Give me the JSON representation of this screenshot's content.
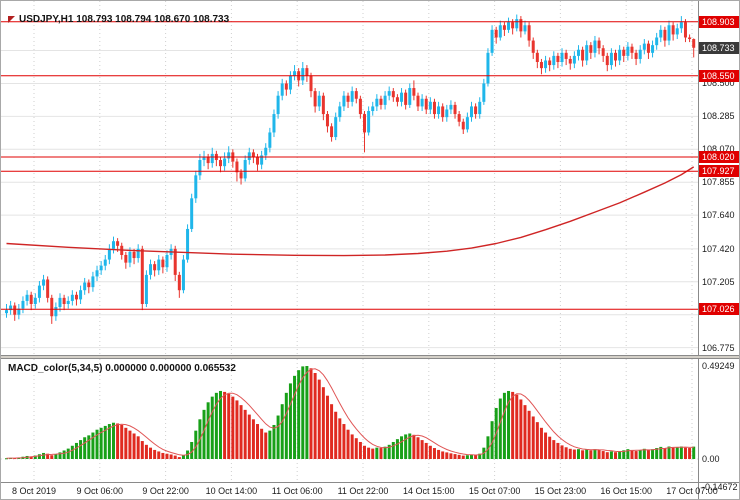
{
  "title": {
    "symbol": "USDJPY,H1",
    "quote": "108.793 108.794 108.670 108.733"
  },
  "macd_title": {
    "name": "MACD_color(5,34,5)",
    "values": "0.000000 0.000000 0.065532"
  },
  "chart_data": {
    "type": "candlestick",
    "symbol": "USDJPY",
    "timeframe": "H1",
    "quote": {
      "open": "108.793",
      "high": "108.794",
      "low": "108.670",
      "close": "108.733"
    },
    "price_axis": {
      "min": 106.74,
      "max": 108.96,
      "gridlines": [
        {
          "label": "",
          "value": 108.715
        },
        {
          "label": "108.500",
          "value": 108.5
        },
        {
          "label": "108.285",
          "value": 108.285
        },
        {
          "label": "108.070",
          "value": 108.07
        },
        {
          "label": "107.855",
          "value": 107.855
        },
        {
          "label": "107.640",
          "value": 107.64
        },
        {
          "label": "107.420",
          "value": 107.42
        },
        {
          "label": "107.205",
          "value": 107.205
        },
        {
          "label": "",
          "value": 106.99
        },
        {
          "label": "106.775",
          "value": 106.775
        }
      ]
    },
    "levels": [
      {
        "label": "108.903",
        "value": 108.903
      },
      {
        "label": "108.550",
        "value": 108.55
      },
      {
        "label": "108.020",
        "value": 108.02
      },
      {
        "label": "107.927",
        "value": 107.927
      },
      {
        "label": "107.026",
        "value": 107.026
      }
    ],
    "current_price": {
      "label": "108.733",
      "value": 108.733
    },
    "time_labels": [
      "8 Oct 2019",
      "9 Oct 06:00",
      "9 Oct 22:00",
      "10 Oct 14:00",
      "11 Oct 06:00",
      "11 Oct 22:00",
      "14 Oct 15:00",
      "15 Oct 07:00",
      "15 Oct 23:00",
      "16 Oct 15:00",
      "17 Oct 07:00"
    ],
    "candles": [
      [
        107.0,
        107.06,
        106.97,
        107.02
      ],
      [
        107.02,
        107.08,
        106.99,
        107.05
      ],
      [
        107.05,
        107.07,
        106.95,
        106.99
      ],
      [
        106.99,
        107.06,
        106.96,
        107.03
      ],
      [
        107.03,
        107.11,
        107.0,
        107.08
      ],
      [
        107.08,
        107.15,
        107.05,
        107.12
      ],
      [
        107.12,
        107.14,
        107.02,
        107.06
      ],
      [
        107.06,
        107.13,
        107.03,
        107.1
      ],
      [
        107.1,
        107.21,
        107.07,
        107.18
      ],
      [
        107.18,
        107.25,
        107.15,
        107.22
      ],
      [
        107.22,
        107.24,
        107.07,
        107.1
      ],
      [
        107.1,
        107.12,
        106.93,
        106.98
      ],
      [
        106.98,
        107.07,
        106.95,
        107.04
      ],
      [
        107.04,
        107.13,
        107.01,
        107.1
      ],
      [
        107.1,
        107.12,
        107.02,
        107.06
      ],
      [
        107.06,
        107.11,
        107.03,
        107.08
      ],
      [
        107.08,
        107.15,
        107.05,
        107.12
      ],
      [
        107.12,
        107.14,
        107.05,
        107.09
      ],
      [
        107.09,
        107.18,
        107.06,
        107.15
      ],
      [
        107.15,
        107.23,
        107.12,
        107.2
      ],
      [
        107.2,
        107.22,
        107.13,
        107.17
      ],
      [
        107.17,
        107.27,
        107.14,
        107.24
      ],
      [
        107.24,
        107.31,
        107.21,
        107.28
      ],
      [
        107.28,
        107.34,
        107.25,
        107.31
      ],
      [
        107.31,
        107.38,
        107.28,
        107.35
      ],
      [
        107.35,
        107.45,
        107.32,
        107.42
      ],
      [
        107.42,
        107.5,
        107.39,
        107.47
      ],
      [
        107.47,
        107.49,
        107.4,
        107.44
      ],
      [
        107.44,
        107.46,
        107.35,
        107.38
      ],
      [
        107.38,
        107.4,
        107.29,
        107.33
      ],
      [
        107.33,
        107.43,
        107.3,
        107.4
      ],
      [
        107.4,
        107.42,
        107.32,
        107.36
      ],
      [
        107.36,
        107.45,
        107.33,
        107.42
      ],
      [
        107.42,
        107.44,
        107.02,
        107.06
      ],
      [
        107.06,
        107.28,
        107.04,
        107.25
      ],
      [
        107.25,
        107.35,
        107.22,
        107.32
      ],
      [
        107.32,
        107.34,
        107.24,
        107.28
      ],
      [
        107.28,
        107.38,
        107.25,
        107.35
      ],
      [
        107.35,
        107.37,
        107.26,
        107.3
      ],
      [
        107.3,
        107.41,
        107.27,
        107.38
      ],
      [
        107.38,
        107.45,
        107.35,
        107.42
      ],
      [
        107.42,
        107.44,
        107.21,
        107.25
      ],
      [
        107.25,
        107.27,
        107.1,
        107.15
      ],
      [
        107.15,
        107.38,
        107.13,
        107.35
      ],
      [
        107.35,
        107.58,
        107.33,
        107.55
      ],
      [
        107.55,
        107.78,
        107.53,
        107.75
      ],
      [
        107.75,
        107.93,
        107.72,
        107.9
      ],
      [
        107.9,
        108.04,
        107.87,
        108.0
      ],
      [
        108.0,
        108.06,
        107.96,
        108.02
      ],
      [
        108.02,
        108.04,
        107.94,
        107.98
      ],
      [
        107.98,
        108.08,
        107.95,
        108.04
      ],
      [
        108.04,
        108.06,
        107.96,
        108.0
      ],
      [
        108.0,
        108.02,
        107.92,
        107.96
      ],
      [
        107.96,
        108.05,
        107.93,
        108.01
      ],
      [
        108.01,
        108.09,
        107.98,
        108.05
      ],
      [
        108.05,
        108.07,
        107.95,
        107.99
      ],
      [
        107.99,
        108.01,
        107.86,
        107.92
      ],
      [
        107.92,
        107.94,
        107.84,
        107.88
      ],
      [
        107.88,
        108.03,
        107.86,
        108.0
      ],
      [
        108.0,
        108.08,
        107.97,
        108.05
      ],
      [
        108.05,
        108.07,
        107.98,
        108.02
      ],
      [
        108.02,
        108.04,
        107.93,
        107.97
      ],
      [
        107.97,
        108.06,
        107.94,
        108.03
      ],
      [
        108.03,
        108.11,
        108.0,
        108.08
      ],
      [
        108.08,
        108.21,
        108.05,
        108.18
      ],
      [
        108.18,
        108.33,
        108.15,
        108.3
      ],
      [
        108.3,
        108.45,
        108.27,
        108.42
      ],
      [
        108.42,
        108.53,
        108.39,
        108.5
      ],
      [
        108.5,
        108.52,
        108.42,
        108.46
      ],
      [
        108.46,
        108.58,
        108.43,
        108.55
      ],
      [
        108.55,
        108.62,
        108.52,
        108.58
      ],
      [
        108.58,
        108.6,
        108.48,
        108.52
      ],
      [
        108.52,
        108.64,
        108.49,
        108.6
      ],
      [
        108.6,
        108.62,
        108.51,
        108.55
      ],
      [
        108.55,
        108.57,
        108.41,
        108.45
      ],
      [
        108.45,
        108.47,
        108.31,
        108.35
      ],
      [
        108.35,
        108.45,
        108.32,
        108.42
      ],
      [
        108.42,
        108.44,
        108.26,
        108.3
      ],
      [
        108.3,
        108.32,
        108.18,
        108.22
      ],
      [
        108.22,
        108.24,
        108.12,
        108.15
      ],
      [
        108.15,
        108.31,
        108.13,
        108.28
      ],
      [
        108.28,
        108.38,
        108.25,
        108.35
      ],
      [
        108.35,
        108.45,
        108.32,
        108.42
      ],
      [
        108.42,
        108.44,
        108.34,
        108.38
      ],
      [
        108.38,
        108.48,
        108.35,
        108.45
      ],
      [
        108.45,
        108.47,
        108.37,
        108.4
      ],
      [
        108.4,
        108.42,
        108.27,
        108.3
      ],
      [
        108.3,
        108.32,
        108.05,
        108.18
      ],
      [
        108.18,
        108.35,
        108.16,
        108.32
      ],
      [
        108.32,
        108.38,
        108.29,
        108.35
      ],
      [
        108.35,
        108.43,
        108.32,
        108.4
      ],
      [
        108.4,
        108.42,
        108.33,
        108.36
      ],
      [
        108.36,
        108.45,
        108.33,
        108.42
      ],
      [
        108.42,
        108.48,
        108.39,
        108.45
      ],
      [
        108.45,
        108.47,
        108.38,
        108.41
      ],
      [
        108.41,
        108.43,
        108.35,
        108.38
      ],
      [
        108.38,
        108.47,
        108.35,
        108.44
      ],
      [
        108.44,
        108.46,
        108.33,
        108.36
      ],
      [
        108.36,
        108.5,
        108.34,
        108.47
      ],
      [
        108.47,
        108.52,
        108.39,
        108.42
      ],
      [
        108.42,
        108.44,
        108.32,
        108.35
      ],
      [
        108.35,
        108.43,
        108.32,
        108.4
      ],
      [
        108.4,
        108.42,
        108.3,
        108.33
      ],
      [
        108.33,
        108.41,
        108.3,
        108.38
      ],
      [
        108.38,
        108.4,
        108.27,
        108.3
      ],
      [
        108.3,
        108.38,
        108.27,
        108.35
      ],
      [
        108.35,
        108.37,
        108.25,
        108.28
      ],
      [
        108.28,
        108.36,
        108.25,
        108.33
      ],
      [
        108.33,
        108.39,
        108.3,
        108.36
      ],
      [
        108.36,
        108.38,
        108.27,
        108.3
      ],
      [
        108.3,
        108.32,
        108.22,
        108.25
      ],
      [
        108.25,
        108.27,
        108.17,
        108.2
      ],
      [
        108.2,
        108.31,
        108.18,
        108.28
      ],
      [
        108.28,
        108.38,
        108.25,
        108.35
      ],
      [
        108.35,
        108.37,
        108.27,
        108.3
      ],
      [
        108.3,
        108.41,
        108.27,
        108.38
      ],
      [
        108.38,
        108.53,
        108.36,
        108.5
      ],
      [
        108.5,
        108.73,
        108.48,
        108.7
      ],
      [
        108.7,
        108.88,
        108.68,
        108.85
      ],
      [
        108.85,
        108.87,
        108.76,
        108.8
      ],
      [
        108.8,
        108.91,
        108.78,
        108.88
      ],
      [
        108.88,
        108.9,
        108.81,
        108.85
      ],
      [
        108.85,
        108.93,
        108.83,
        108.9
      ],
      [
        108.9,
        108.92,
        108.82,
        108.86
      ],
      [
        108.86,
        108.95,
        108.84,
        108.92
      ],
      [
        108.92,
        108.94,
        108.8,
        108.84
      ],
      [
        108.84,
        108.91,
        108.82,
        108.88
      ],
      [
        108.88,
        108.9,
        108.74,
        108.78
      ],
      [
        108.78,
        108.8,
        108.66,
        108.7
      ],
      [
        108.7,
        108.72,
        108.6,
        108.64
      ],
      [
        108.64,
        108.66,
        108.56,
        108.6
      ],
      [
        108.6,
        108.68,
        108.57,
        108.65
      ],
      [
        108.65,
        108.67,
        108.58,
        108.62
      ],
      [
        108.62,
        108.71,
        108.59,
        108.68
      ],
      [
        108.68,
        108.7,
        108.6,
        108.64
      ],
      [
        108.64,
        108.73,
        108.61,
        108.7
      ],
      [
        108.7,
        108.72,
        108.62,
        108.66
      ],
      [
        108.66,
        108.68,
        108.59,
        108.63
      ],
      [
        108.63,
        108.71,
        108.6,
        108.68
      ],
      [
        108.68,
        108.75,
        108.65,
        108.72
      ],
      [
        108.72,
        108.74,
        108.61,
        108.65
      ],
      [
        108.65,
        108.78,
        108.62,
        108.75
      ],
      [
        108.75,
        108.77,
        108.66,
        108.7
      ],
      [
        108.7,
        108.81,
        108.67,
        108.78
      ],
      [
        108.78,
        108.8,
        108.69,
        108.73
      ],
      [
        108.73,
        108.75,
        108.64,
        108.68
      ],
      [
        108.68,
        108.7,
        108.58,
        108.62
      ],
      [
        108.62,
        108.73,
        108.59,
        108.7
      ],
      [
        108.7,
        108.72,
        108.61,
        108.65
      ],
      [
        108.65,
        108.75,
        108.62,
        108.72
      ],
      [
        108.72,
        108.74,
        108.64,
        108.68
      ],
      [
        108.68,
        108.77,
        108.65,
        108.74
      ],
      [
        108.74,
        108.76,
        108.66,
        108.7
      ],
      [
        108.7,
        108.72,
        108.62,
        108.66
      ],
      [
        108.66,
        108.75,
        108.63,
        108.72
      ],
      [
        108.72,
        108.79,
        108.69,
        108.76
      ],
      [
        108.76,
        108.78,
        108.66,
        108.7
      ],
      [
        108.7,
        108.78,
        108.67,
        108.75
      ],
      [
        108.75,
        108.83,
        108.72,
        108.8
      ],
      [
        108.8,
        108.88,
        108.77,
        108.85
      ],
      [
        108.85,
        108.87,
        108.74,
        108.78
      ],
      [
        108.78,
        108.91,
        108.75,
        108.88
      ],
      [
        108.88,
        108.9,
        108.78,
        108.82
      ],
      [
        108.82,
        108.89,
        108.79,
        108.86
      ],
      [
        108.86,
        108.94,
        108.83,
        108.9
      ],
      [
        108.9,
        108.92,
        108.77,
        108.8
      ],
      [
        108.8,
        108.82,
        108.77,
        108.79
      ],
      [
        108.79,
        108.794,
        108.67,
        108.733
      ]
    ],
    "ma_points": [
      [
        0,
        107.455
      ],
      [
        15,
        107.43
      ],
      [
        30,
        107.41
      ],
      [
        45,
        107.395
      ],
      [
        55,
        107.385
      ],
      [
        70,
        107.378
      ],
      [
        82,
        107.376
      ],
      [
        92,
        107.38
      ],
      [
        100,
        107.39
      ],
      [
        107,
        107.405
      ],
      [
        113,
        107.425
      ],
      [
        119,
        107.455
      ],
      [
        125,
        107.495
      ],
      [
        131,
        107.545
      ],
      [
        137,
        107.6
      ],
      [
        143,
        107.66
      ],
      [
        149,
        107.72
      ],
      [
        155,
        107.79
      ],
      [
        160,
        107.85
      ],
      [
        164,
        107.905
      ],
      [
        167,
        107.955
      ]
    ],
    "macd": {
      "name": "MACD_color(5,34,5)",
      "current_values": "0.000000 0.000000 0.065532",
      "axis": [
        {
          "label": "0.49249",
          "value": 0.49249
        },
        {
          "label": "0.00",
          "value": 0
        },
        {
          "label": "-0.14672",
          "value": -0.14672
        }
      ],
      "hist": [
        0.004,
        0.006,
        0.005,
        0.008,
        0.012,
        0.016,
        0.014,
        0.018,
        0.025,
        0.032,
        0.028,
        0.02,
        0.024,
        0.035,
        0.045,
        0.055,
        0.07,
        0.085,
        0.1,
        0.115,
        0.125,
        0.14,
        0.155,
        0.165,
        0.175,
        0.185,
        0.192,
        0.188,
        0.18,
        0.165,
        0.15,
        0.135,
        0.12,
        0.095,
        0.075,
        0.06,
        0.048,
        0.04,
        0.032,
        0.028,
        0.024,
        0.018,
        0.01,
        0.02,
        0.045,
        0.09,
        0.15,
        0.21,
        0.26,
        0.3,
        0.33,
        0.35,
        0.36,
        0.355,
        0.345,
        0.33,
        0.31,
        0.285,
        0.26,
        0.235,
        0.21,
        0.185,
        0.16,
        0.14,
        0.15,
        0.18,
        0.23,
        0.29,
        0.35,
        0.4,
        0.44,
        0.47,
        0.49,
        0.492,
        0.48,
        0.455,
        0.42,
        0.38,
        0.335,
        0.29,
        0.25,
        0.215,
        0.185,
        0.155,
        0.13,
        0.11,
        0.09,
        0.07,
        0.06,
        0.055,
        0.06,
        0.058,
        0.065,
        0.075,
        0.09,
        0.105,
        0.12,
        0.13,
        0.135,
        0.128,
        0.115,
        0.1,
        0.085,
        0.07,
        0.058,
        0.048,
        0.04,
        0.035,
        0.03,
        0.026,
        0.022,
        0.018,
        0.02,
        0.024,
        0.022,
        0.028,
        0.06,
        0.12,
        0.2,
        0.27,
        0.32,
        0.35,
        0.36,
        0.355,
        0.34,
        0.315,
        0.285,
        0.255,
        0.225,
        0.195,
        0.165,
        0.14,
        0.118,
        0.1,
        0.085,
        0.072,
        0.062,
        0.054,
        0.05,
        0.052,
        0.046,
        0.052,
        0.046,
        0.052,
        0.048,
        0.042,
        0.036,
        0.04,
        0.036,
        0.042,
        0.046,
        0.052,
        0.048,
        0.042,
        0.048,
        0.054,
        0.048,
        0.052,
        0.058,
        0.064,
        0.058,
        0.066,
        0.06,
        0.062,
        0.066,
        0.06,
        0.058,
        0.0655
      ]
    },
    "colors": {
      "bull": "#1fb6ea",
      "bear": "#e8352e",
      "ma": "#cf2525",
      "level": "#e00000",
      "badge": "#e00000",
      "current_badge": "#3a3a3a",
      "macd_up": "#18a018",
      "macd_down": "#e02a20",
      "signal": "#e05555",
      "grid": "#e4e4e4",
      "vgrid": "#cfcfcf"
    }
  }
}
